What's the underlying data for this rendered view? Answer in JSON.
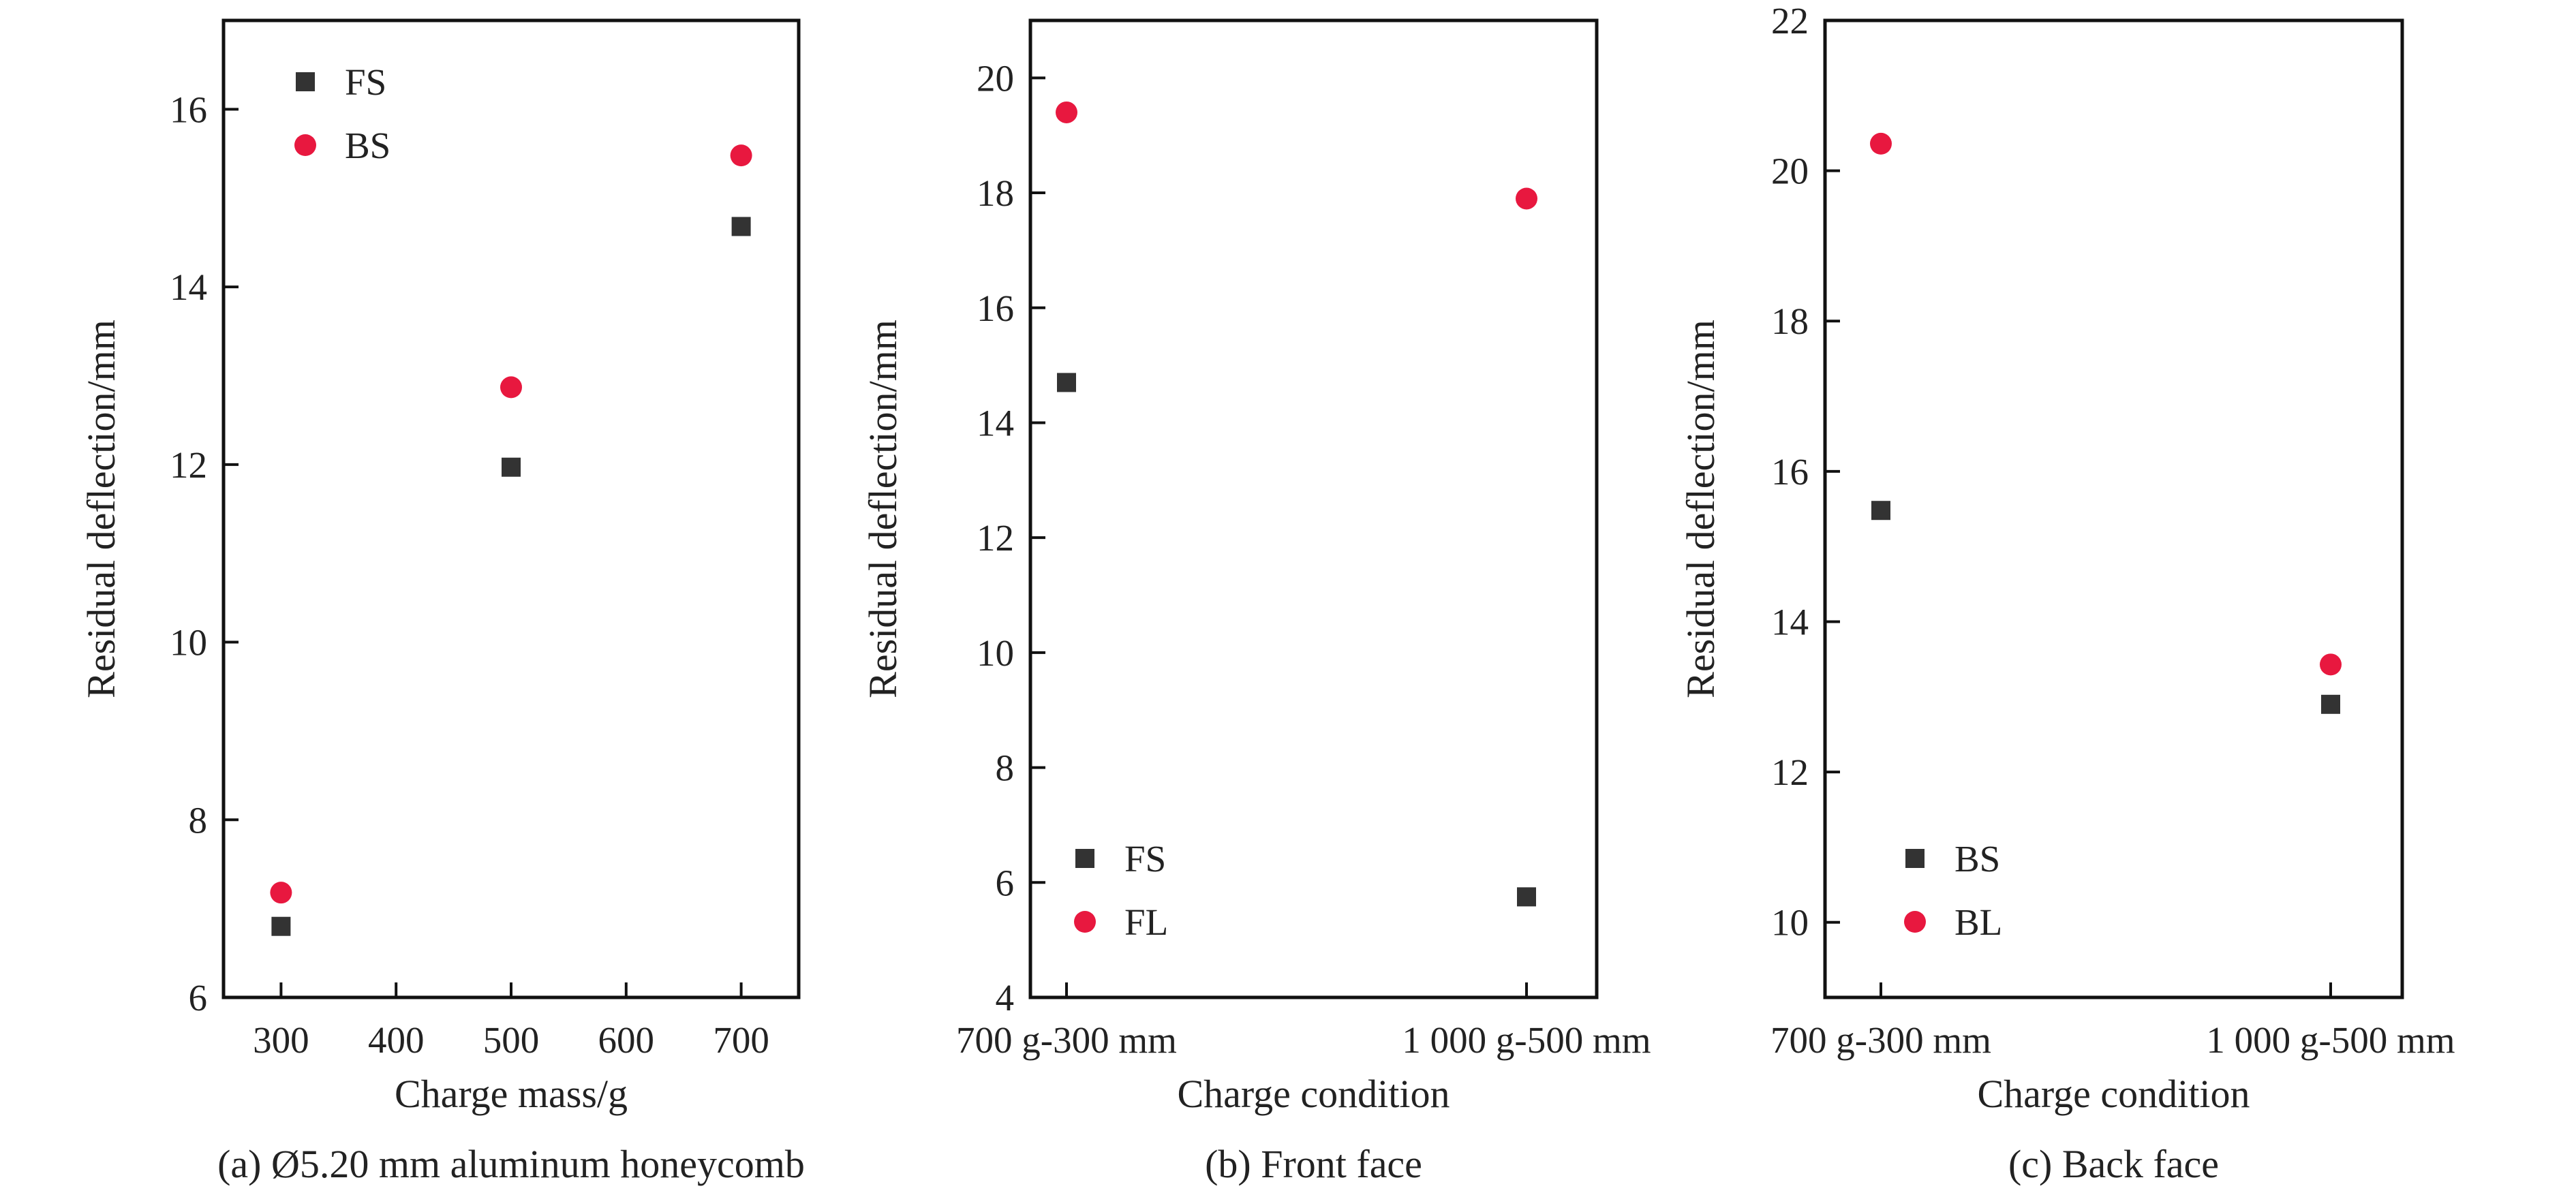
{
  "colors": {
    "square_series": "#333333",
    "circle_series": "#e8183f",
    "axis": "#111111",
    "text": "#222222"
  },
  "chart_data": [
    {
      "type": "scatter",
      "caption": "(a) Ø5.20 mm aluminum honeycomb",
      "xlabel": "Charge mass/g",
      "ylabel": "Residual deflection/mm",
      "x_scale": "linear",
      "xlim": [
        250,
        750
      ],
      "ylim": [
        6,
        17
      ],
      "xticks": [
        300,
        400,
        500,
        600,
        700
      ],
      "yticks": [
        6,
        8,
        10,
        12,
        14,
        16
      ],
      "grid": false,
      "legend_position": "top-left",
      "series": [
        {
          "name": "FS",
          "marker": "square",
          "x": [
            300,
            500,
            700
          ],
          "y": [
            6.8,
            11.97,
            14.68
          ]
        },
        {
          "name": "BS",
          "marker": "circle",
          "x": [
            300,
            500,
            700
          ],
          "y": [
            7.18,
            12.87,
            15.48
          ]
        }
      ]
    },
    {
      "type": "scatter",
      "caption": "(b) Front face",
      "xlabel": "Charge condition",
      "ylabel": "Residual deflection/mm",
      "x_scale": "categorical",
      "categories": [
        "700 g-300 mm",
        "1 000 g-500 mm"
      ],
      "ylim": [
        4,
        21
      ],
      "yticks": [
        4,
        6,
        8,
        10,
        12,
        14,
        16,
        18,
        20
      ],
      "grid": false,
      "legend_position": "bottom-left",
      "series": [
        {
          "name": "FS",
          "marker": "square",
          "values": [
            14.7,
            5.75
          ]
        },
        {
          "name": "FL",
          "marker": "circle",
          "values": [
            19.4,
            17.9
          ]
        }
      ]
    },
    {
      "type": "scatter",
      "caption": "(c) Back face",
      "xlabel": "Charge condition",
      "ylabel": "Residual deflection/mm",
      "x_scale": "categorical",
      "categories": [
        "700 g-300 mm",
        "1 000 g-500 mm"
      ],
      "ylim": [
        9,
        22
      ],
      "yticks": [
        10,
        12,
        14,
        16,
        18,
        20,
        22
      ],
      "grid": false,
      "legend_position": "bottom-left",
      "series": [
        {
          "name": "BS",
          "marker": "square",
          "values": [
            15.48,
            12.9
          ]
        },
        {
          "name": "BL",
          "marker": "circle",
          "values": [
            20.36,
            13.43
          ]
        }
      ]
    }
  ]
}
